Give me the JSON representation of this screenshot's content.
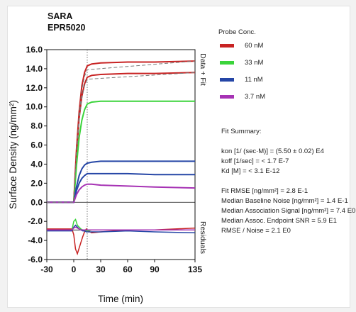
{
  "colors": {
    "red": "#c82323",
    "green": "#3bd43b",
    "blue": "#2546a6",
    "purple": "#a632b4",
    "fit": "#7a7a7a"
  },
  "chart_data": {
    "type": "line",
    "title": [
      "SARA",
      "EPR5020"
    ],
    "xlabel": "Time (min)",
    "ylabel": "Surface Density (ng/mm²)",
    "xlim": [
      -30,
      135
    ],
    "ylim": [
      -6.0,
      16.0
    ],
    "xticks": [
      "-30",
      "0",
      "30",
      "60",
      "90",
      "135"
    ],
    "yticks": [
      "16.0",
      "14.0",
      "12.0",
      "10.0",
      "8.0",
      "6.0",
      "4.0",
      "2.0",
      "0.0",
      "-2.0",
      "-4.0",
      "-6.0"
    ],
    "xtick_values": [
      -30,
      0,
      30,
      60,
      90,
      135
    ],
    "ytick_values": [
      16,
      14,
      12,
      10,
      8,
      6,
      4,
      2,
      0,
      -2,
      -4,
      -6
    ],
    "injection_end_x": 15,
    "right_labels": [
      "Data + Fit",
      "Residuals"
    ],
    "legend": {
      "title": "Probe Conc.",
      "entries": [
        {
          "label": "60 nM",
          "color": "#c82323"
        },
        {
          "label": "33 nM",
          "color": "#3bd43b"
        },
        {
          "label": "11 nM",
          "color": "#2546a6"
        },
        {
          "label": "3.7 nM",
          "color": "#a632b4"
        }
      ]
    },
    "series": [
      {
        "color": "#c82323",
        "x": [
          -30,
          0,
          3,
          6,
          9,
          12,
          15,
          20,
          30,
          60,
          90,
          135
        ],
        "y": [
          0,
          0,
          5.5,
          9.5,
          12.2,
          13.6,
          14.3,
          14.5,
          14.6,
          14.7,
          14.7,
          14.8
        ]
      },
      {
        "color": "#c82323",
        "x": [
          -30,
          0,
          3,
          6,
          9,
          12,
          15,
          20,
          30,
          60,
          90,
          135
        ],
        "y": [
          0,
          0,
          5.0,
          8.8,
          11.1,
          12.4,
          13.1,
          13.3,
          13.4,
          13.5,
          13.5,
          13.6
        ]
      },
      {
        "color": "#3bd43b",
        "x": [
          -30,
          0,
          3,
          6,
          9,
          12,
          15,
          20,
          30,
          60,
          90,
          135
        ],
        "y": [
          0,
          0,
          3.8,
          6.8,
          8.6,
          9.7,
          10.3,
          10.5,
          10.6,
          10.6,
          10.6,
          10.6
        ]
      },
      {
        "color": "#2546a6",
        "x": [
          -30,
          0,
          3,
          6,
          9,
          12,
          15,
          20,
          30,
          60,
          90,
          135
        ],
        "y": [
          0,
          0,
          1.6,
          2.8,
          3.5,
          3.9,
          4.1,
          4.2,
          4.3,
          4.3,
          4.3,
          4.3
        ]
      },
      {
        "color": "#2546a6",
        "x": [
          -30,
          0,
          3,
          6,
          9,
          12,
          15,
          20,
          30,
          60,
          90,
          135
        ],
        "y": [
          0,
          0,
          1.2,
          2.0,
          2.5,
          2.8,
          3.0,
          3.0,
          3.0,
          3.0,
          2.9,
          2.9
        ]
      },
      {
        "color": "#a632b4",
        "x": [
          -30,
          0,
          3,
          6,
          9,
          12,
          15,
          20,
          30,
          60,
          90,
          135
        ],
        "y": [
          0,
          0,
          0.8,
          1.3,
          1.6,
          1.8,
          1.9,
          1.9,
          1.8,
          1.7,
          1.6,
          1.5
        ]
      }
    ],
    "fit_lines": [
      {
        "x": [
          -30,
          0,
          3,
          6,
          9,
          12,
          15,
          135
        ],
        "y": [
          0,
          0,
          5.3,
          9.2,
          11.8,
          13.2,
          13.9,
          14.8
        ]
      },
      {
        "x": [
          -30,
          0,
          3,
          6,
          9,
          12,
          15,
          135
        ],
        "y": [
          0,
          0,
          4.9,
          8.6,
          10.9,
          12.2,
          12.9,
          13.6
        ]
      }
    ],
    "residual_baseline": -2.9,
    "residuals": [
      {
        "color": "#c82323",
        "x": [
          -30,
          -2,
          0,
          2,
          4,
          6,
          8,
          10,
          12,
          14,
          16,
          20,
          30,
          60,
          90,
          135
        ],
        "y": [
          -2.8,
          -2.8,
          -3.4,
          -4.9,
          -5.4,
          -4.8,
          -4.2,
          -3.6,
          -3.1,
          -2.8,
          -3.0,
          -3.2,
          -3.1,
          -2.9,
          -2.9,
          -2.7
        ]
      },
      {
        "color": "#3bd43b",
        "x": [
          -30,
          -2,
          0,
          2,
          4,
          6,
          8,
          10,
          12,
          14,
          16,
          20,
          30,
          60,
          90,
          135
        ],
        "y": [
          -2.9,
          -2.9,
          -2.0,
          -1.8,
          -2.4,
          -2.6,
          -2.8,
          -2.9,
          -3.0,
          -3.0,
          -3.0,
          -2.9,
          -2.9,
          -2.9,
          -2.9,
          -2.9
        ]
      },
      {
        "color": "#2546a6",
        "x": [
          -30,
          -2,
          0,
          2,
          4,
          6,
          8,
          10,
          12,
          14,
          16,
          20,
          30,
          60,
          90,
          135
        ],
        "y": [
          -3.0,
          -3.0,
          -2.6,
          -2.4,
          -2.6,
          -2.8,
          -2.9,
          -3.0,
          -3.0,
          -3.1,
          -3.1,
          -3.1,
          -3.1,
          -3.0,
          -3.1,
          -3.2
        ]
      },
      {
        "color": "#a632b4",
        "x": [
          -30,
          -2,
          0,
          2,
          4,
          6,
          8,
          10,
          12,
          14,
          16,
          20,
          30,
          60,
          90,
          135
        ],
        "y": [
          -2.9,
          -2.9,
          -2.7,
          -2.6,
          -2.7,
          -2.8,
          -2.9,
          -2.9,
          -2.9,
          -2.9,
          -2.9,
          -2.9,
          -2.9,
          -2.9,
          -2.9,
          -2.9
        ]
      }
    ],
    "fit_summary": {
      "heading": "Fit Summary:",
      "lines": [
        "kon  [1/ (sec·M)]  =  (5.50 ± 0.02) E4",
        "koff  [1/sec]  =  < 1.7 E-7",
        "Kd  [M]  =  < 3.1 E-12",
        "",
        "Fit RMSE [ng/mm²]  =  2.8 E-1",
        "Median Baseline Noise [ng/mm²]  =  1.4 E-1",
        "Median Association Signal [ng/mm²]  =  7.4 E0",
        "Median Assoc. Endpoint SNR  =  5.9 E1",
        "RMSE / Noise  =  2.1 E0"
      ]
    }
  }
}
